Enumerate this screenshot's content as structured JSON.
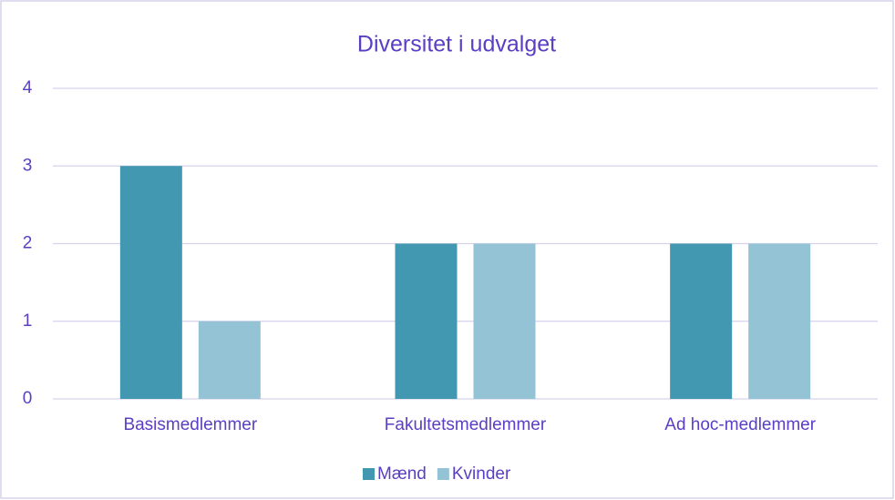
{
  "chart_data": {
    "type": "bar",
    "title": "Diversitet i udvalget",
    "categories": [
      "Basismedlemmer",
      "Fakultetsmedlemmer",
      "Ad hoc-medlemmer"
    ],
    "series": [
      {
        "name": "Mænd",
        "color": "#4198b0",
        "values": [
          3,
          2,
          2
        ]
      },
      {
        "name": "Kvinder",
        "color": "#93c3d5",
        "values": [
          1,
          2,
          2
        ]
      }
    ],
    "ylim": [
      0,
      4
    ],
    "yticks": [
      0,
      1,
      2,
      3,
      4
    ],
    "grid": true,
    "legend": "bottom"
  }
}
